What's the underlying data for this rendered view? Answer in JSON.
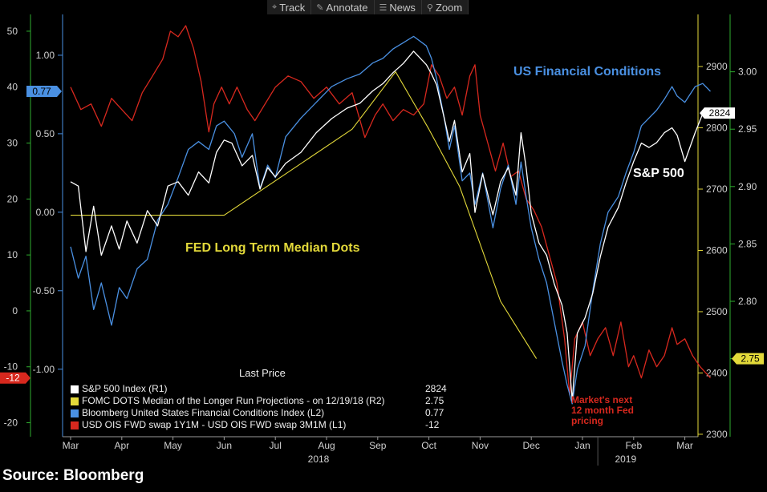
{
  "toolbar": [
    {
      "label": "Track",
      "icon": "crosshair-icon",
      "glyph": "⌖"
    },
    {
      "label": "Annotate",
      "icon": "pencil-icon",
      "glyph": "✎"
    },
    {
      "label": "News",
      "icon": "news-icon",
      "glyph": "☰"
    },
    {
      "label": "Zoom",
      "icon": "magnifier-icon",
      "glyph": "⚲"
    }
  ],
  "source": "Source: Bloomberg",
  "chart_data": {
    "type": "line",
    "months": [
      "Mar",
      "Apr",
      "May",
      "Jun",
      "Jul",
      "Aug",
      "Sep",
      "Oct",
      "Nov",
      "Dec",
      "Jan",
      "Feb",
      "Mar"
    ],
    "years": [
      {
        "label": "2018",
        "month_index": 5
      },
      {
        "label": "2019",
        "month_index": 11
      }
    ],
    "axes": {
      "L1": {
        "ticks": [
          50,
          40,
          30,
          20,
          10,
          0,
          -10,
          -20
        ],
        "range": [
          -22.5,
          53
        ],
        "color": "#d0d0d0",
        "tick_color": "#d7281e"
      },
      "L2": {
        "ticks": [
          1.0,
          0.5,
          0.0,
          -0.5,
          -1.0
        ],
        "tick_labels": [
          "1.00",
          "0.50",
          "0.00",
          "-0.50",
          "-1.00"
        ],
        "range": [
          -1.43,
          1.26
        ],
        "color": "#d0d0d0",
        "tick_color": "#4a90e2"
      },
      "R1": {
        "ticks": [
          2900,
          2800,
          2700,
          2600,
          2500,
          2400,
          2300
        ],
        "range": [
          2296,
          2985
        ],
        "color": "#d0d0d0",
        "tick_color": "#ffffff"
      },
      "R2": {
        "ticks": [
          3.0,
          2.95,
          2.9,
          2.85,
          2.8,
          2.75
        ],
        "tick_labels": [
          "3.00",
          "2.95",
          "2.90",
          "2.85",
          "2.80",
          "2.75"
        ],
        "range": [
          2.682,
          3.05
        ],
        "color": "#d0d0d0",
        "tick_color": "#ccd235"
      }
    },
    "series": [
      {
        "key": "fomc",
        "name": "FOMC DOTS Median of the Longer Run Projections -   on 12/19/18  (R2)",
        "axis": "R2",
        "color": "#e3d93a",
        "last": "2.75",
        "points": [
          [
            0,
            2.875
          ],
          [
            1.3,
            2.875
          ],
          [
            3.0,
            2.875
          ],
          [
            5.5,
            2.95
          ],
          [
            6.35,
            3.0
          ],
          [
            7.0,
            2.95
          ],
          [
            7.6,
            2.9
          ],
          [
            8.4,
            2.8
          ],
          [
            9.1,
            2.75
          ]
        ]
      },
      {
        "key": "sp",
        "name": "S&P 500 Index  (R1)",
        "axis": "R1",
        "color": "#ffffff",
        "last": "2824",
        "points": [
          [
            0,
            2712
          ],
          [
            0.15,
            2705
          ],
          [
            0.3,
            2598
          ],
          [
            0.45,
            2672
          ],
          [
            0.6,
            2592
          ],
          [
            0.8,
            2640
          ],
          [
            0.95,
            2602
          ],
          [
            1.1,
            2648
          ],
          [
            1.3,
            2612
          ],
          [
            1.5,
            2665
          ],
          [
            1.7,
            2640
          ],
          [
            1.9,
            2705
          ],
          [
            2.1,
            2712
          ],
          [
            2.3,
            2690
          ],
          [
            2.5,
            2728
          ],
          [
            2.7,
            2710
          ],
          [
            2.85,
            2760
          ],
          [
            3.0,
            2780
          ],
          [
            3.15,
            2775
          ],
          [
            3.35,
            2738
          ],
          [
            3.55,
            2755
          ],
          [
            3.7,
            2700
          ],
          [
            3.85,
            2735
          ],
          [
            4.0,
            2720
          ],
          [
            4.2,
            2742
          ],
          [
            4.5,
            2760
          ],
          [
            4.8,
            2792
          ],
          [
            5.1,
            2815
          ],
          [
            5.4,
            2832
          ],
          [
            5.65,
            2840
          ],
          [
            5.9,
            2860
          ],
          [
            6.1,
            2872
          ],
          [
            6.3,
            2890
          ],
          [
            6.5,
            2905
          ],
          [
            6.7,
            2925
          ],
          [
            6.95,
            2903
          ],
          [
            7.05,
            2888
          ],
          [
            7.15,
            2870
          ],
          [
            7.3,
            2816
          ],
          [
            7.4,
            2778
          ],
          [
            7.5,
            2812
          ],
          [
            7.65,
            2728
          ],
          [
            7.8,
            2758
          ],
          [
            7.9,
            2662
          ],
          [
            8.05,
            2725
          ],
          [
            8.25,
            2658
          ],
          [
            8.4,
            2712
          ],
          [
            8.55,
            2735
          ],
          [
            8.7,
            2690
          ],
          [
            8.8,
            2792
          ],
          [
            8.9,
            2735
          ],
          [
            9.0,
            2660
          ],
          [
            9.15,
            2612
          ],
          [
            9.3,
            2592
          ],
          [
            9.45,
            2545
          ],
          [
            9.6,
            2511
          ],
          [
            9.7,
            2465
          ],
          [
            9.8,
            2355
          ],
          [
            9.9,
            2465
          ],
          [
            10.05,
            2490
          ],
          [
            10.2,
            2530
          ],
          [
            10.35,
            2590
          ],
          [
            10.5,
            2638
          ],
          [
            10.7,
            2670
          ],
          [
            10.85,
            2710
          ],
          [
            11.0,
            2745
          ],
          [
            11.15,
            2775
          ],
          [
            11.3,
            2768
          ],
          [
            11.45,
            2776
          ],
          [
            11.6,
            2792
          ],
          [
            11.75,
            2800
          ],
          [
            11.85,
            2788
          ],
          [
            12.0,
            2745
          ],
          [
            12.2,
            2792
          ],
          [
            12.35,
            2823
          ],
          [
            12.5,
            2824
          ]
        ]
      },
      {
        "key": "fci",
        "name": "Bloomberg United States Financial Conditions Index  (L2)",
        "axis": "L2",
        "color": "#4a90e2",
        "last": "0.77",
        "points": [
          [
            0,
            -0.22
          ],
          [
            0.15,
            -0.42
          ],
          [
            0.3,
            -0.28
          ],
          [
            0.45,
            -0.62
          ],
          [
            0.6,
            -0.45
          ],
          [
            0.8,
            -0.72
          ],
          [
            0.95,
            -0.48
          ],
          [
            1.1,
            -0.55
          ],
          [
            1.3,
            -0.36
          ],
          [
            1.5,
            -0.3
          ],
          [
            1.7,
            -0.05
          ],
          [
            1.9,
            0.05
          ],
          [
            2.1,
            0.22
          ],
          [
            2.3,
            0.4
          ],
          [
            2.5,
            0.45
          ],
          [
            2.7,
            0.4
          ],
          [
            2.85,
            0.55
          ],
          [
            3.0,
            0.58
          ],
          [
            3.2,
            0.5
          ],
          [
            3.35,
            0.35
          ],
          [
            3.55,
            0.5
          ],
          [
            3.7,
            0.15
          ],
          [
            3.85,
            0.3
          ],
          [
            4.0,
            0.22
          ],
          [
            4.2,
            0.48
          ],
          [
            4.5,
            0.6
          ],
          [
            4.8,
            0.7
          ],
          [
            5.1,
            0.8
          ],
          [
            5.4,
            0.85
          ],
          [
            5.65,
            0.88
          ],
          [
            5.9,
            0.95
          ],
          [
            6.1,
            0.98
          ],
          [
            6.3,
            1.04
          ],
          [
            6.5,
            1.08
          ],
          [
            6.7,
            1.12
          ],
          [
            6.95,
            1.06
          ],
          [
            7.05,
            0.98
          ],
          [
            7.15,
            0.85
          ],
          [
            7.3,
            0.6
          ],
          [
            7.4,
            0.4
          ],
          [
            7.5,
            0.55
          ],
          [
            7.65,
            0.2
          ],
          [
            7.8,
            0.25
          ],
          [
            7.9,
            0.05
          ],
          [
            8.05,
            0.25
          ],
          [
            8.25,
            -0.1
          ],
          [
            8.4,
            0.15
          ],
          [
            8.55,
            0.3
          ],
          [
            8.7,
            0.05
          ],
          [
            8.8,
            0.32
          ],
          [
            8.9,
            0.1
          ],
          [
            9.0,
            -0.1
          ],
          [
            9.15,
            -0.3
          ],
          [
            9.3,
            -0.45
          ],
          [
            9.45,
            -0.7
          ],
          [
            9.6,
            -0.95
          ],
          [
            9.7,
            -1.1
          ],
          [
            9.8,
            -1.22
          ],
          [
            9.9,
            -1.0
          ],
          [
            10.05,
            -0.85
          ],
          [
            10.2,
            -0.5
          ],
          [
            10.35,
            -0.2
          ],
          [
            10.5,
            0.0
          ],
          [
            10.7,
            0.1
          ],
          [
            10.85,
            0.25
          ],
          [
            11.0,
            0.38
          ],
          [
            11.15,
            0.55
          ],
          [
            11.3,
            0.6
          ],
          [
            11.45,
            0.65
          ],
          [
            11.6,
            0.72
          ],
          [
            11.75,
            0.8
          ],
          [
            11.85,
            0.74
          ],
          [
            12.0,
            0.7
          ],
          [
            12.2,
            0.8
          ],
          [
            12.35,
            0.82
          ],
          [
            12.5,
            0.77
          ]
        ]
      },
      {
        "key": "ois",
        "name": "USD OIS FWD swap 1Y1M - USD OIS FWD swap 3M1M  (L1)",
        "axis": "L1",
        "color": "#d7281e",
        "last": "-12",
        "points": [
          [
            0,
            40
          ],
          [
            0.2,
            36
          ],
          [
            0.4,
            37
          ],
          [
            0.6,
            33
          ],
          [
            0.8,
            38
          ],
          [
            1.0,
            36
          ],
          [
            1.2,
            34
          ],
          [
            1.4,
            39
          ],
          [
            1.6,
            42
          ],
          [
            1.8,
            45
          ],
          [
            1.95,
            50
          ],
          [
            2.1,
            49
          ],
          [
            2.25,
            51
          ],
          [
            2.4,
            47
          ],
          [
            2.55,
            41
          ],
          [
            2.7,
            32
          ],
          [
            2.8,
            37
          ],
          [
            2.95,
            40
          ],
          [
            3.1,
            37
          ],
          [
            3.25,
            40
          ],
          [
            3.45,
            36
          ],
          [
            3.6,
            34
          ],
          [
            3.8,
            37
          ],
          [
            4.0,
            40
          ],
          [
            4.25,
            42
          ],
          [
            4.5,
            41
          ],
          [
            4.75,
            38
          ],
          [
            5.0,
            40
          ],
          [
            5.25,
            37
          ],
          [
            5.5,
            39
          ],
          [
            5.75,
            31
          ],
          [
            5.95,
            35
          ],
          [
            6.1,
            37
          ],
          [
            6.3,
            34
          ],
          [
            6.5,
            36
          ],
          [
            6.7,
            35
          ],
          [
            6.9,
            37
          ],
          [
            7.05,
            44
          ],
          [
            7.2,
            42
          ],
          [
            7.35,
            38
          ],
          [
            7.5,
            40
          ],
          [
            7.65,
            35
          ],
          [
            7.8,
            42
          ],
          [
            7.9,
            44
          ],
          [
            8.0,
            35
          ],
          [
            8.15,
            30
          ],
          [
            8.3,
            25
          ],
          [
            8.45,
            30
          ],
          [
            8.6,
            24
          ],
          [
            8.75,
            25
          ],
          [
            8.9,
            20
          ],
          [
            9.05,
            18
          ],
          [
            9.2,
            15
          ],
          [
            9.35,
            10
          ],
          [
            9.5,
            5
          ],
          [
            9.65,
            -5
          ],
          [
            9.75,
            -15
          ],
          [
            9.85,
            -5
          ],
          [
            10.0,
            -2
          ],
          [
            10.15,
            -8
          ],
          [
            10.3,
            -5
          ],
          [
            10.45,
            -3
          ],
          [
            10.6,
            -8
          ],
          [
            10.75,
            -2
          ],
          [
            10.9,
            -10
          ],
          [
            11.0,
            -8
          ],
          [
            11.15,
            -12
          ],
          [
            11.3,
            -7
          ],
          [
            11.45,
            -10
          ],
          [
            11.6,
            -8
          ],
          [
            11.75,
            -3
          ],
          [
            11.85,
            -6
          ],
          [
            12.0,
            -5
          ],
          [
            12.15,
            -8
          ],
          [
            12.3,
            -10
          ],
          [
            12.5,
            -12
          ]
        ]
      }
    ],
    "annotations": [
      {
        "text": "US Financial Conditions",
        "color": "#4a90e2"
      },
      {
        "text": "S&P 500",
        "color": "#ffffff"
      },
      {
        "text": "FED Long Term Median Dots",
        "color": "#e3d93a"
      },
      {
        "text": "Market's next 12 month Fed pricing",
        "lines": [
          "Market's next",
          "12 month Fed",
          "pricing"
        ],
        "color": "#d7281e"
      }
    ],
    "legend_title": "Last Price",
    "legend_order": [
      "sp",
      "fomc",
      "fci",
      "ois"
    ]
  }
}
